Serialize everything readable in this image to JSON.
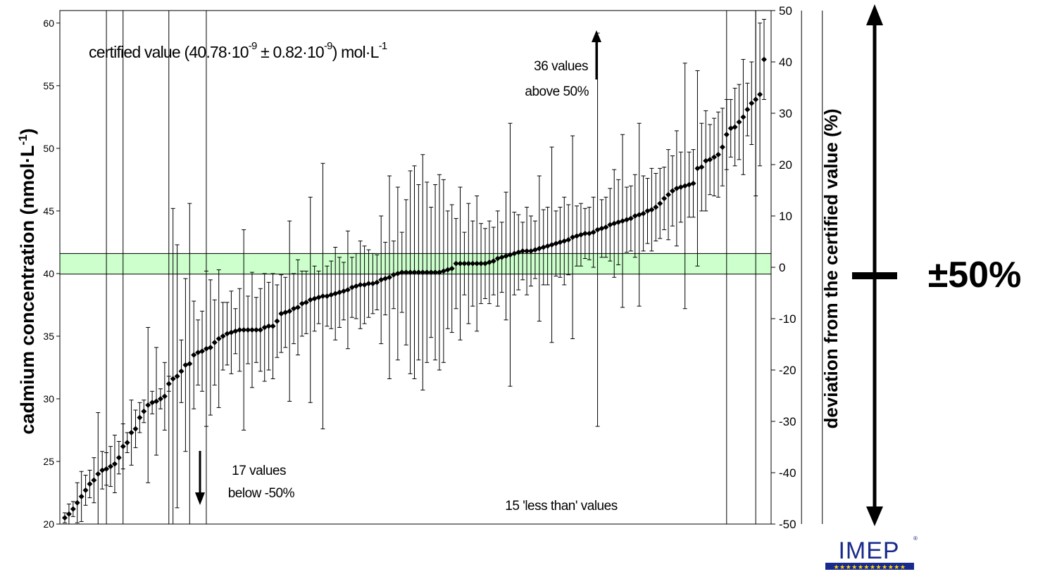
{
  "chart_data": {
    "type": "scatter",
    "ylabel_left_main": "cadmium concentration (nmol·L",
    "ylabel_left_sup": "-1",
    "ylabel_left_end": ")",
    "ylabel_right": "deviation from the certified value (%)",
    "ylim_left": [
      20,
      61
    ],
    "yticks_left": [
      "20",
      "25",
      "30",
      "35",
      "40",
      "45",
      "50",
      "55",
      "60"
    ],
    "ylim_right": [
      -50,
      50
    ],
    "yticks_right": [
      "-50",
      "-40",
      "-30",
      "-20",
      "-10",
      "0",
      "10",
      "20",
      "30",
      "40",
      "50"
    ],
    "certified_value": 40.78,
    "certified_uncertainty": 0.82,
    "annotation_certified": {
      "pre": "certified value (40.78·10",
      "sup1": "-9",
      "mid": " ± 0.82·10",
      "sup2": "-9",
      "post": ") mol·L",
      "sup3": "-1"
    },
    "annotation_above_line1": "36 values",
    "annotation_above_line2": "above 50%",
    "annotation_below_line1": "17 values",
    "annotation_below_line2": "below -50%",
    "annotation_less_than": "15 'less than' values",
    "range_label": "±50%",
    "logo_text": "IMEP",
    "colors": {
      "band": "#ccffcc",
      "marker": "#000000",
      "axis": "#000000"
    },
    "points": [
      {
        "y": 20.5,
        "u": 0.4
      },
      {
        "y": 20.8,
        "u": 0.8
      },
      {
        "y": 21.2,
        "u": 0.6
      },
      {
        "y": 21.7,
        "u": 1.6
      },
      {
        "y": 22.2,
        "u": 2.0
      },
      {
        "y": 22.7,
        "u": 1.2
      },
      {
        "y": 23.2,
        "u": 1.1
      },
      {
        "y": 23.5,
        "u": 1.8
      },
      {
        "y": 24.0,
        "u": 4.9
      },
      {
        "y": 24.3,
        "u": 1.5
      },
      {
        "y": 24.4,
        "u": 1.3
      },
      {
        "y": 24.6,
        "u": 1.6
      },
      {
        "y": 24.8,
        "u": 2.3
      },
      {
        "y": 25.3,
        "u": 1.3
      },
      {
        "y": 26.2,
        "u": 1.8
      },
      {
        "y": 26.5,
        "u": 0.8
      },
      {
        "y": 27.3,
        "u": 2.6
      },
      {
        "y": 27.6,
        "u": 1.5
      },
      {
        "y": 28.5,
        "u": 1.2
      },
      {
        "y": 29.0,
        "u": 0.9
      },
      {
        "y": 29.5,
        "u": 6.2
      },
      {
        "y": 29.7,
        "u": 0.9
      },
      {
        "y": 29.8,
        "u": 4.3
      },
      {
        "y": 30.0,
        "u": 0.8
      },
      {
        "y": 30.2,
        "u": 2.7
      },
      {
        "y": 31.2,
        "u": 0.6
      },
      {
        "y": 31.6,
        "u": 13.6
      },
      {
        "y": 31.8,
        "u": 10.5
      },
      {
        "y": 32.2,
        "u": 2.5
      },
      {
        "y": 32.7,
        "u": 6.9
      },
      {
        "y": 32.8,
        "u": 12.8
      },
      {
        "y": 33.5,
        "u": 4.3
      },
      {
        "y": 33.7,
        "u": 2.6
      },
      {
        "y": 33.8,
        "u": 3.2
      },
      {
        "y": 34.0,
        "u": 6.2
      },
      {
        "y": 34.1,
        "u": 5.4
      },
      {
        "y": 34.5,
        "u": 3.4
      },
      {
        "y": 34.8,
        "u": 5.5
      },
      {
        "y": 35.0,
        "u": 2.7
      },
      {
        "y": 35.2,
        "u": 2.5
      },
      {
        "y": 35.3,
        "u": 3.3
      },
      {
        "y": 35.4,
        "u": 1.8
      },
      {
        "y": 35.5,
        "u": 3.3
      },
      {
        "y": 35.5,
        "u": 8.0
      },
      {
        "y": 35.5,
        "u": 2.7
      },
      {
        "y": 35.5,
        "u": 4.6
      },
      {
        "y": 35.5,
        "u": 2.6
      },
      {
        "y": 35.5,
        "u": 3.3
      },
      {
        "y": 35.7,
        "u": 4.3
      },
      {
        "y": 35.8,
        "u": 3.5
      },
      {
        "y": 35.8,
        "u": 4.2
      },
      {
        "y": 36.2,
        "u": 2.9
      },
      {
        "y": 36.8,
        "u": 3.1
      },
      {
        "y": 36.9,
        "u": 2.8
      },
      {
        "y": 37.0,
        "u": 7.2
      },
      {
        "y": 37.2,
        "u": 2.8
      },
      {
        "y": 37.3,
        "u": 3.8
      },
      {
        "y": 37.6,
        "u": 2.6
      },
      {
        "y": 37.7,
        "u": 2.5
      },
      {
        "y": 37.9,
        "u": 8.2
      },
      {
        "y": 38.0,
        "u": 2.6
      },
      {
        "y": 38.1,
        "u": 2.1
      },
      {
        "y": 38.2,
        "u": 10.6
      },
      {
        "y": 38.2,
        "u": 2.4
      },
      {
        "y": 38.3,
        "u": 2.7
      },
      {
        "y": 38.4,
        "u": 3.7
      },
      {
        "y": 38.5,
        "u": 2.8
      },
      {
        "y": 38.6,
        "u": 2.3
      },
      {
        "y": 38.7,
        "u": 4.7
      },
      {
        "y": 38.9,
        "u": 2.4
      },
      {
        "y": 39.0,
        "u": 2.6
      },
      {
        "y": 39.1,
        "u": 3.5
      },
      {
        "y": 39.1,
        "u": 3.1
      },
      {
        "y": 39.2,
        "u": 2.7
      },
      {
        "y": 39.2,
        "u": 2.4
      },
      {
        "y": 39.3,
        "u": 2.2
      },
      {
        "y": 39.5,
        "u": 5.1
      },
      {
        "y": 39.6,
        "u": 2.9
      },
      {
        "y": 39.7,
        "u": 8.1
      },
      {
        "y": 39.9,
        "u": 2.7
      },
      {
        "y": 40.0,
        "u": 6.9
      },
      {
        "y": 40.1,
        "u": 3.2
      },
      {
        "y": 40.1,
        "u": 5.8
      },
      {
        "y": 40.1,
        "u": 8.1
      },
      {
        "y": 40.1,
        "u": 8.5
      },
      {
        "y": 40.1,
        "u": 7.0
      },
      {
        "y": 40.1,
        "u": 9.4
      },
      {
        "y": 40.1,
        "u": 7.2
      },
      {
        "y": 40.1,
        "u": 5.2
      },
      {
        "y": 40.1,
        "u": 7.0
      },
      {
        "y": 40.1,
        "u": 7.8
      },
      {
        "y": 40.2,
        "u": 7.3
      },
      {
        "y": 40.3,
        "u": 4.7
      },
      {
        "y": 40.4,
        "u": 5.1
      },
      {
        "y": 40.8,
        "u": 3.6
      },
      {
        "y": 40.8,
        "u": 6.1
      },
      {
        "y": 40.8,
        "u": 2.5
      },
      {
        "y": 40.8,
        "u": 4.8
      },
      {
        "y": 40.8,
        "u": 3.4
      },
      {
        "y": 40.8,
        "u": 5.4
      },
      {
        "y": 40.8,
        "u": 3.2
      },
      {
        "y": 40.8,
        "u": 2.8
      },
      {
        "y": 40.9,
        "u": 3.3
      },
      {
        "y": 41.0,
        "u": 2.7
      },
      {
        "y": 41.2,
        "u": 3.8
      },
      {
        "y": 41.3,
        "u": 2.8
      },
      {
        "y": 41.4,
        "u": 5.1
      },
      {
        "y": 41.5,
        "u": 10.5
      },
      {
        "y": 41.6,
        "u": 3.3
      },
      {
        "y": 41.7,
        "u": 3.0
      },
      {
        "y": 41.8,
        "u": 2.3
      },
      {
        "y": 41.8,
        "u": 3.5
      },
      {
        "y": 41.8,
        "u": 2.8
      },
      {
        "y": 41.9,
        "u": 2.3
      },
      {
        "y": 42.0,
        "u": 5.8
      },
      {
        "y": 42.1,
        "u": 3.0
      },
      {
        "y": 42.2,
        "u": 3.1
      },
      {
        "y": 42.3,
        "u": 7.8
      },
      {
        "y": 42.4,
        "u": 2.6
      },
      {
        "y": 42.5,
        "u": 2.8
      },
      {
        "y": 42.6,
        "u": 3.5
      },
      {
        "y": 42.7,
        "u": 2.8
      },
      {
        "y": 42.9,
        "u": 8.1
      },
      {
        "y": 43.0,
        "u": 2.4
      },
      {
        "y": 43.1,
        "u": 2.5
      },
      {
        "y": 43.2,
        "u": 2.0
      },
      {
        "y": 43.2,
        "u": 2.1
      },
      {
        "y": 43.3,
        "u": 2.8
      },
      {
        "y": 43.5,
        "u": 15.7
      },
      {
        "y": 43.6,
        "u": 2.3
      },
      {
        "y": 43.7,
        "u": 2.4
      },
      {
        "y": 43.9,
        "u": 2.9
      },
      {
        "y": 44.0,
        "u": 4.3
      },
      {
        "y": 44.1,
        "u": 3.4
      },
      {
        "y": 44.2,
        "u": 6.9
      },
      {
        "y": 44.3,
        "u": 2.6
      },
      {
        "y": 44.4,
        "u": 2.6
      },
      {
        "y": 44.6,
        "u": 3.3
      },
      {
        "y": 44.7,
        "u": 7.3
      },
      {
        "y": 44.8,
        "u": 3.0
      },
      {
        "y": 45.0,
        "u": 2.6
      },
      {
        "y": 45.1,
        "u": 3.3
      },
      {
        "y": 45.3,
        "u": 2.7
      },
      {
        "y": 45.6,
        "u": 2.8
      },
      {
        "y": 46.0,
        "u": 2.5
      },
      {
        "y": 46.3,
        "u": 3.6
      },
      {
        "y": 46.6,
        "u": 2.8
      },
      {
        "y": 46.8,
        "u": 4.6
      },
      {
        "y": 46.9,
        "u": 2.8
      },
      {
        "y": 47.0,
        "u": 9.8
      },
      {
        "y": 47.1,
        "u": 2.6
      },
      {
        "y": 47.2,
        "u": 2.7
      },
      {
        "y": 48.4,
        "u": 7.8
      },
      {
        "y": 48.5,
        "u": 3.5
      },
      {
        "y": 49.0,
        "u": 4.0
      },
      {
        "y": 49.1,
        "u": 2.8
      },
      {
        "y": 49.3,
        "u": 3.1
      },
      {
        "y": 49.5,
        "u": 3.4
      },
      {
        "y": 50.1,
        "u": 3.1
      },
      {
        "y": 51.1,
        "u": 2.8
      },
      {
        "y": 51.6,
        "u": 2.3
      },
      {
        "y": 51.7,
        "u": 3.1
      },
      {
        "y": 52.1,
        "u": 3.0
      },
      {
        "y": 52.5,
        "u": 4.6
      },
      {
        "y": 53.1,
        "u": 2.1
      },
      {
        "y": 53.6,
        "u": 3.3
      },
      {
        "y": 53.9,
        "u": 7.7
      },
      {
        "y": 54.3,
        "u": 5.7
      },
      {
        "y": 57.1,
        "u": 3.2
      }
    ],
    "vertical_line_positions": [
      10,
      14,
      25,
      34,
      159,
      166,
      177,
      182
    ]
  }
}
